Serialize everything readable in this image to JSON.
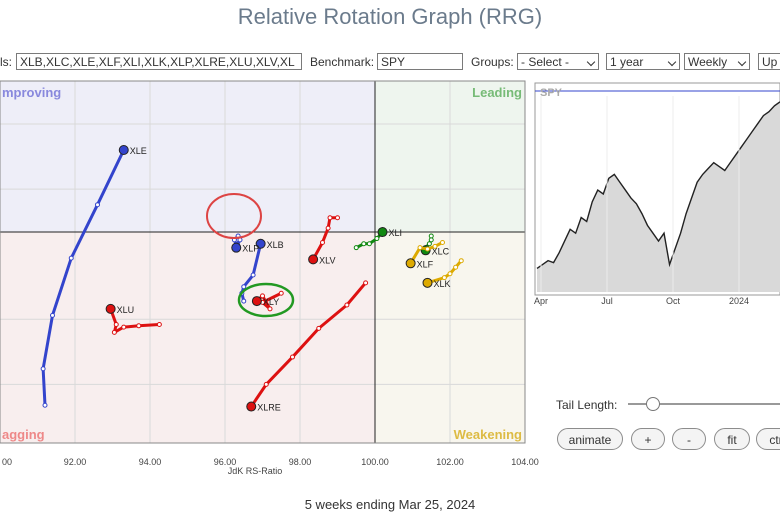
{
  "title": "Relative Rotation Graph (RRG)",
  "controls": {
    "symbols_label": "ls:",
    "symbols_value": "XLB,XLC,XLE,XLF,XLI,XLK,XLP,XLRE,XLU,XLV,XL",
    "benchmark_label": "Benchmark:",
    "benchmark_value": "SPY",
    "groups_label": "Groups:",
    "groups_value": "- Select -",
    "period_value": "1 year",
    "frequency_value": "Weekly",
    "update_label": "Up"
  },
  "footer": "5 weeks ending Mar 25, 2024",
  "tail_length_label": "Tail Length:",
  "tail_length_fraction": 0.1,
  "buttons": {
    "animate": "animate",
    "plus": "+",
    "minus": "-",
    "fit": "fit",
    "ctrl": "ctr"
  },
  "colors": {
    "improving": "#eeeef8",
    "leading": "#eef5ee",
    "weakening": "#f8f6ee",
    "lagging": "#f8eeee"
  },
  "chart_data": [
    {
      "type": "scatter",
      "xlabel": "JdK RS-Ratio",
      "ylabel": "",
      "xlim": [
        90.0,
        104.0
      ],
      "ylim": [
        98.55,
        101.33
      ],
      "center": [
        100,
        100
      ],
      "x_ticks": [
        "00",
        "92.00",
        "94.00",
        "96.00",
        "98.00",
        "100.00",
        "102.00",
        "104.00"
      ],
      "quadrants": {
        "improving": "mproving",
        "leading": "Leading",
        "weakening": "Weakening",
        "lagging": "agging"
      },
      "series": [
        {
          "name": "XLE",
          "color": "#3344cc",
          "x": [
            91.2,
            91.15,
            91.4,
            91.9,
            92.6,
            93.3
          ],
          "y": [
            98.84,
            99.12,
            99.53,
            99.97,
            100.38,
            100.8
          ]
        },
        {
          "name": "XLB",
          "color": "#3344cc",
          "x": [
            96.5,
            96.45,
            96.5,
            96.75,
            96.95
          ],
          "y": [
            99.64,
            99.7,
            99.75,
            99.84,
            100.08
          ]
        },
        {
          "name": "XLP",
          "color": "#3344cc",
          "x": [
            96.35,
            96.25,
            96.3,
            96.4,
            96.3
          ],
          "y": [
            100.14,
            100.11,
            100.07,
            100.11,
            100.05
          ]
        },
        {
          "name": "XLV",
          "color": "#dd1111",
          "x": [
            99.0,
            98.8,
            98.75,
            98.6,
            98.35
          ],
          "y": [
            100.28,
            100.28,
            100.2,
            100.09,
            99.96
          ]
        },
        {
          "name": "XLY",
          "color": "#dd1111",
          "x": [
            97.5,
            97.0,
            97.2,
            97.0,
            96.85
          ],
          "y": [
            99.7,
            99.63,
            99.58,
            99.68,
            99.64
          ]
        },
        {
          "name": "XLU",
          "color": "#dd1111",
          "x": [
            94.25,
            93.7,
            93.3,
            93.05,
            93.1,
            92.95
          ],
          "y": [
            99.46,
            99.45,
            99.44,
            99.4,
            99.46,
            99.58
          ]
        },
        {
          "name": "XLRE",
          "color": "#dd1111",
          "x": [
            99.75,
            99.25,
            98.5,
            97.8,
            97.1,
            96.7
          ],
          "y": [
            99.78,
            99.61,
            99.43,
            99.21,
            99.0,
            98.83
          ]
        },
        {
          "name": "XLI",
          "color": "#118811",
          "x": [
            99.5,
            99.7,
            99.85,
            100.05,
            100.2
          ],
          "y": [
            100.05,
            100.08,
            100.08,
            100.12,
            100.17
          ]
        },
        {
          "name": "XLC",
          "color": "#118811",
          "x": [
            101.5,
            101.5,
            101.45,
            101.35,
            101.35
          ],
          "y": [
            100.14,
            100.11,
            100.08,
            100.05,
            100.03
          ]
        },
        {
          "name": "XLF",
          "color": "#ddaa00",
          "x": [
            101.8,
            101.6,
            101.4,
            101.2,
            100.95
          ],
          "y": [
            100.09,
            100.06,
            100.04,
            100.05,
            99.93
          ]
        },
        {
          "name": "XLK",
          "color": "#ddaa00",
          "x": [
            102.3,
            102.15,
            102.0,
            101.85,
            101.4
          ],
          "y": [
            99.95,
            99.9,
            99.85,
            99.82,
            99.78
          ]
        }
      ]
    },
    {
      "type": "area",
      "title": "SPY",
      "x_ticks": [
        "Apr",
        "Jul",
        "Oct",
        "2024"
      ],
      "values": [
        0.12,
        0.14,
        0.16,
        0.15,
        0.2,
        0.26,
        0.32,
        0.3,
        0.38,
        0.36,
        0.46,
        0.52,
        0.5,
        0.58,
        0.6,
        0.56,
        0.52,
        0.48,
        0.45,
        0.4,
        0.34,
        0.3,
        0.26,
        0.3,
        0.14,
        0.22,
        0.3,
        0.4,
        0.48,
        0.56,
        0.6,
        0.63,
        0.66,
        0.64,
        0.62,
        0.66,
        0.7,
        0.74,
        0.78,
        0.82,
        0.86,
        0.9,
        0.92,
        0.95,
        0.97
      ]
    }
  ]
}
